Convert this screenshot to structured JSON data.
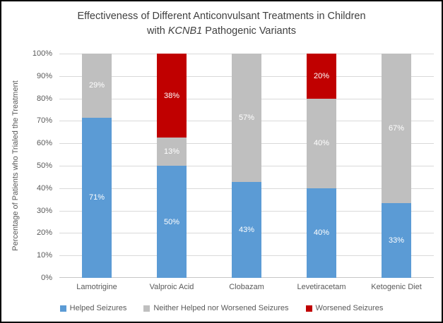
{
  "title": {
    "line1": "Effectiveness of Different Anticonvulsant Treatments in Children",
    "line2_pre": "with ",
    "line2_italic": "KCNB1",
    "line2_post": " Pathogenic Variants"
  },
  "chart_data": {
    "type": "bar",
    "stacked": true,
    "title": "Effectiveness of Different Anticonvulsant Treatments in Children with KCNB1 Pathogenic Variants",
    "xlabel": "",
    "ylabel": "Percentage of Patients who Trialed the Treatment",
    "ylim": [
      0,
      100
    ],
    "ytick_step": 10,
    "yticks": [
      "0%",
      "10%",
      "20%",
      "30%",
      "40%",
      "50%",
      "60%",
      "70%",
      "80%",
      "90%",
      "100%"
    ],
    "grid": true,
    "legend_position": "bottom",
    "categories": [
      "Lamotrigine",
      "Valproic Acid",
      "Clobazam",
      "Levetiracetam",
      "Ketogenic Diet"
    ],
    "series": [
      {
        "name": "Helped Seizures",
        "color": "#5B9BD5",
        "values": [
          71.4,
          50,
          42.9,
          40,
          33.3
        ],
        "labels": [
          "71%",
          "50%",
          "43%",
          "40%",
          "33%"
        ]
      },
      {
        "name": "Neither Helped nor Worsened Seizures",
        "color": "#BFBFBF",
        "values": [
          28.6,
          12.5,
          57.1,
          40,
          66.7
        ],
        "labels": [
          "29%",
          "13%",
          "57%",
          "40%",
          "67%"
        ]
      },
      {
        "name": "Worsened Seizures",
        "color": "#C00000",
        "values": [
          0,
          37.5,
          0,
          20,
          0
        ],
        "labels": [
          "",
          "38%",
          "",
          "20%",
          ""
        ]
      }
    ]
  },
  "colors": {
    "title_text": "#404040",
    "axis_text": "#595959",
    "gridline": "#D9D9D9",
    "data_label_text": "#FFFFFF",
    "border": "#000000"
  }
}
